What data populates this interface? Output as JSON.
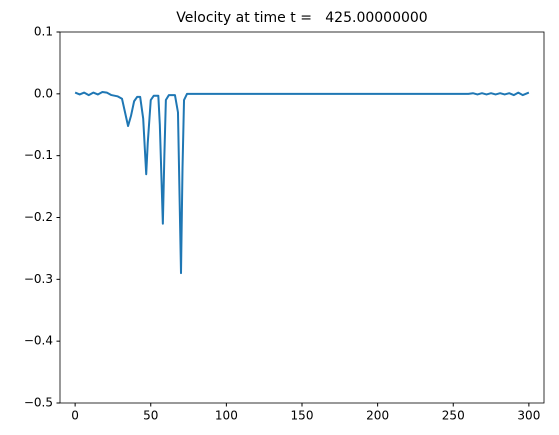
{
  "chart_data": {
    "type": "line",
    "title": "Velocity at time t =   425.00000000",
    "x": [
      0,
      3,
      6,
      9,
      12,
      15,
      18,
      21,
      24,
      28,
      31,
      33,
      35,
      37,
      39,
      41,
      43,
      45,
      47,
      48,
      50,
      52,
      55,
      56,
      58,
      59,
      60,
      62,
      66,
      68,
      70,
      71,
      72,
      74,
      100,
      200,
      260,
      263,
      266,
      269,
      272,
      275,
      278,
      281,
      284,
      287,
      290,
      293,
      296,
      300
    ],
    "series": [
      {
        "name": "velocity",
        "color": "#1f77b4",
        "values": [
          0.002,
          -0.001,
          0.002,
          -0.002,
          0.002,
          -0.001,
          0.003,
          0.002,
          -0.002,
          -0.004,
          -0.008,
          -0.03,
          -0.052,
          -0.035,
          -0.012,
          -0.005,
          -0.005,
          -0.04,
          -0.13,
          -0.08,
          -0.01,
          -0.003,
          -0.003,
          -0.05,
          -0.21,
          -0.1,
          -0.01,
          -0.002,
          -0.002,
          -0.03,
          -0.29,
          -0.12,
          -0.01,
          0,
          0,
          0,
          0,
          0.001,
          -0.001,
          0.001,
          -0.001,
          0.001,
          -0.001,
          0.001,
          -0.001,
          0.001,
          -0.002,
          0.002,
          -0.002,
          0.002
        ]
      }
    ],
    "xlim": [
      -10,
      310
    ],
    "xticks": [
      0,
      50,
      100,
      150,
      200,
      250,
      300
    ],
    "ylim": [
      -0.5,
      0.1
    ],
    "yticks": [
      0.1,
      {
        "value": 0,
        "label": "0.0"
      },
      {
        "value": -0.1,
        "label": "−0.1"
      },
      {
        "value": -0.2,
        "label": "−0.2"
      },
      {
        "value": -0.3,
        "label": "−0.3"
      },
      {
        "value": -0.4,
        "label": "−0.4"
      },
      {
        "value": -0.5,
        "label": "−0.5"
      }
    ],
    "grid": false
  }
}
